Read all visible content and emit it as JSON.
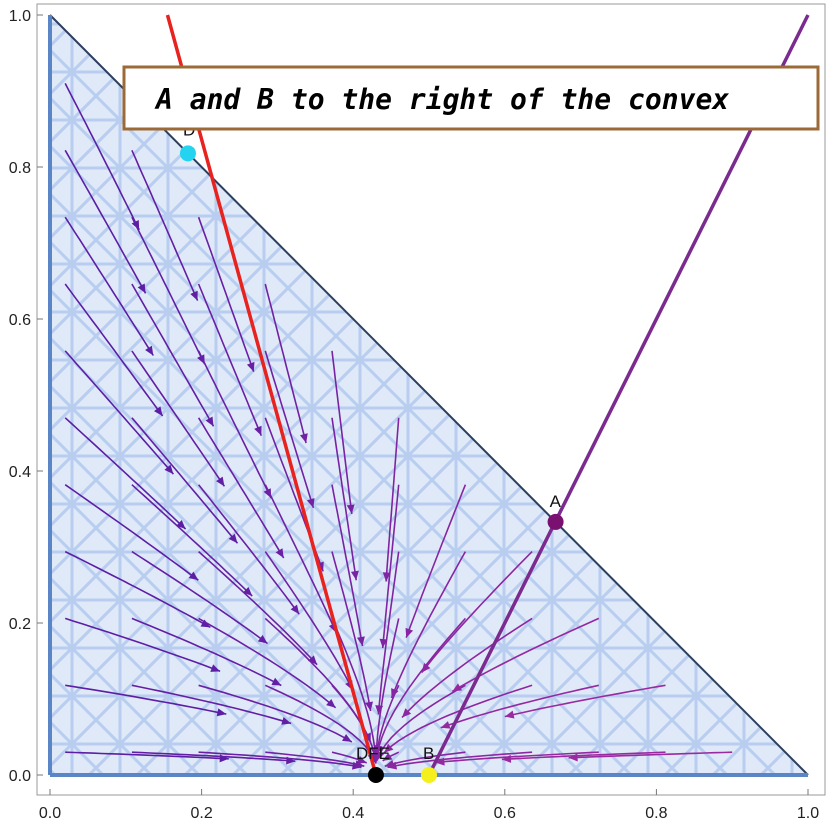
{
  "chart_data": {
    "type": "stream-plot",
    "annotation_text": "A and B to the right of the convex",
    "xlim": [
      0,
      1
    ],
    "ylim": [
      0,
      1
    ],
    "x_ticks": [
      {
        "value": 0.0,
        "label": "0.0"
      },
      {
        "value": 0.2,
        "label": "0.2"
      },
      {
        "value": 0.4,
        "label": "0.4"
      },
      {
        "value": 0.6,
        "label": "0.6"
      },
      {
        "value": 0.8,
        "label": "0.8"
      },
      {
        "value": 1.0,
        "label": "1.0"
      }
    ],
    "y_ticks": [
      {
        "value": 0.0,
        "label": "0.0"
      },
      {
        "value": 0.2,
        "label": "0.2"
      },
      {
        "value": 0.4,
        "label": "0.4"
      },
      {
        "value": 0.6,
        "label": "0.6"
      },
      {
        "value": 0.8,
        "label": "0.8"
      },
      {
        "value": 1.0,
        "label": "1.0"
      }
    ],
    "region": {
      "shape": "triangle",
      "vertices": [
        [
          0,
          0
        ],
        [
          1,
          0
        ],
        [
          0,
          1
        ]
      ],
      "fill": "#dde8f8",
      "edge": "#2b3f5f"
    },
    "lines": [
      {
        "name": "red-line",
        "color": "#e8221e",
        "points": [
          [
            0.155,
            1.0
          ],
          [
            0.43,
            0.0
          ]
        ]
      },
      {
        "name": "purple-line",
        "color": "#7b2b8f",
        "points": [
          [
            0.5,
            0.0
          ],
          [
            1.0,
            1.0
          ]
        ]
      }
    ],
    "points": [
      {
        "label": "D",
        "x": 0.182,
        "y": 0.818,
        "color": "#23d3f0"
      },
      {
        "label": "A",
        "x": 0.667,
        "y": 0.333,
        "color": "#7a1170"
      },
      {
        "label": "B",
        "x": 0.5,
        "y": 0.0,
        "color": "#f5f01c"
      },
      {
        "label": "DFE",
        "x": 0.43,
        "y": 0.0,
        "color": "#000000"
      }
    ],
    "stream_color_range": [
      "#4b1aa6",
      "#9a2aa0"
    ],
    "grid": false
  }
}
